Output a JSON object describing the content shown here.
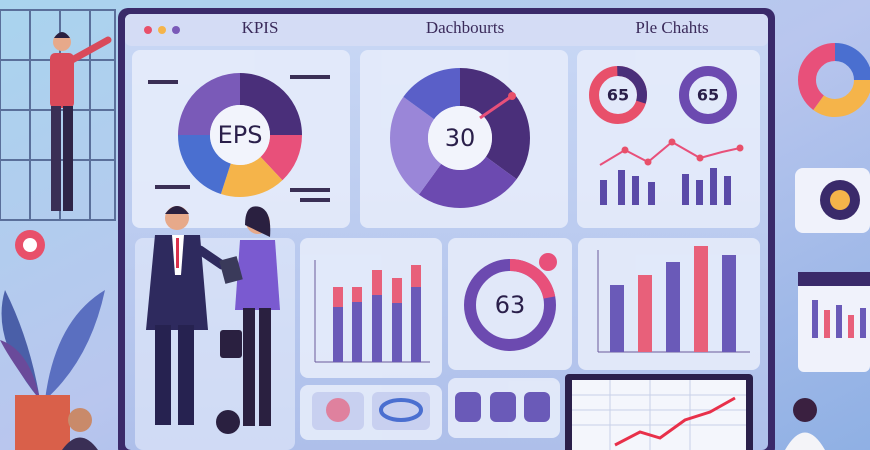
{
  "header": {
    "tabs": [
      "KPIS",
      "Dachbourts",
      "Ple Chahts"
    ]
  },
  "panels": {
    "eps_donut": "EPS",
    "center_donut": "30",
    "small_donut_left": "65",
    "small_donut_right": "65",
    "bottom_donut": "63"
  }
}
